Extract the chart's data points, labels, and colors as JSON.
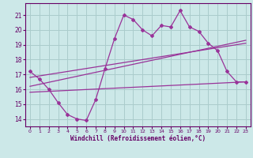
{
  "xlabel": "Windchill (Refroidissement éolien,°C)",
  "bg_color": "#cce8e8",
  "grid_color": "#aacccc",
  "line_color": "#993399",
  "text_color": "#660066",
  "xlim": [
    -0.5,
    23.5
  ],
  "ylim": [
    13.5,
    21.8
  ],
  "yticks": [
    14,
    15,
    16,
    17,
    18,
    19,
    20,
    21
  ],
  "xticks": [
    0,
    1,
    2,
    3,
    4,
    5,
    6,
    7,
    8,
    9,
    10,
    11,
    12,
    13,
    14,
    15,
    16,
    17,
    18,
    19,
    20,
    21,
    22,
    23
  ],
  "curve1_x": [
    0,
    1,
    2,
    3,
    4,
    5,
    6,
    7,
    8,
    9,
    10,
    11,
    12,
    13,
    14,
    15,
    16,
    17,
    18,
    19,
    20,
    21,
    22,
    23
  ],
  "curve1_y": [
    17.2,
    16.7,
    16.0,
    15.1,
    14.3,
    14.0,
    13.9,
    15.3,
    17.4,
    19.4,
    21.0,
    20.7,
    20.0,
    19.6,
    20.3,
    20.2,
    21.3,
    20.2,
    19.9,
    19.1,
    18.6,
    17.2,
    16.5,
    16.5
  ],
  "curve2_x": [
    0,
    23
  ],
  "curve2_y": [
    16.8,
    19.1
  ],
  "curve3_x": [
    0,
    23
  ],
  "curve3_y": [
    16.2,
    19.3
  ],
  "curve4_x": [
    0,
    23
  ],
  "curve4_y": [
    15.8,
    16.5
  ]
}
